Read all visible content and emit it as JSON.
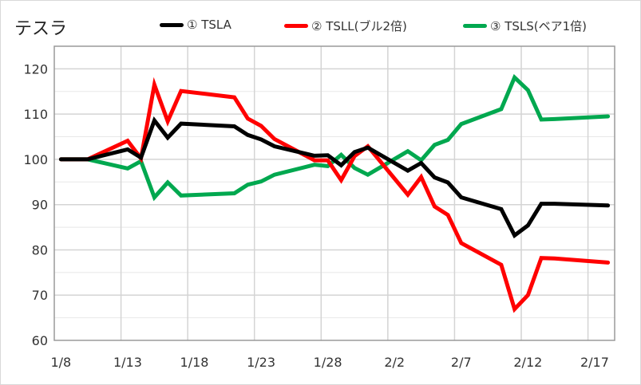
{
  "chart_data": {
    "type": "line",
    "title": "テスラ",
    "xlabel": "",
    "ylabel": "",
    "ylim": [
      60,
      125
    ],
    "y_ticks": [
      "60",
      "70",
      "80",
      "90",
      "100",
      "110",
      "120"
    ],
    "x_ticks": [
      "1/8",
      "1/13",
      "1/18",
      "1/23",
      "1/28",
      "2/2",
      "2/7",
      "2/12",
      "2/17"
    ],
    "grid": true,
    "legend_position": "top",
    "x": [
      "1/8",
      "1/10",
      "1/13",
      "1/14",
      "1/15",
      "1/16",
      "1/17",
      "1/21",
      "1/22",
      "1/23",
      "1/24",
      "1/27",
      "1/28",
      "1/29",
      "1/30",
      "1/31",
      "2/3",
      "2/4",
      "2/5",
      "2/6",
      "2/7",
      "2/10",
      "2/11",
      "2/12",
      "2/13",
      "2/14",
      "2/18"
    ],
    "series": [
      {
        "name": "① TSLA",
        "color": "#000000",
        "values": [
          100,
          100,
          102.2,
          100.4,
          108.6,
          104.8,
          107.9,
          107.3,
          105.4,
          104.4,
          102.9,
          100.8,
          100.9,
          98.7,
          101.6,
          102.6,
          97.5,
          99.2,
          96.0,
          94.9,
          91.6,
          89.0,
          83.2,
          85.4,
          90.2,
          90.2,
          89.8
        ]
      },
      {
        "name": "② TSLL(ブル2倍)",
        "color": "#ff0000",
        "values": [
          100,
          100,
          104.1,
          100.2,
          116.5,
          108.4,
          115.1,
          113.7,
          109.0,
          107.4,
          104.5,
          99.8,
          99.8,
          95.4,
          100.7,
          102.9,
          92.2,
          96.1,
          89.6,
          87.7,
          81.5,
          76.7,
          66.9,
          70.0,
          78.2,
          78.1,
          77.2
        ]
      },
      {
        "name": "③ TSLS(ベア1倍)",
        "color": "#00a84f",
        "values": [
          100,
          100,
          98.0,
          99.6,
          91.6,
          94.9,
          92.0,
          92.5,
          94.4,
          95.1,
          96.6,
          98.8,
          98.5,
          101.0,
          98.1,
          96.6,
          101.8,
          99.8,
          103.2,
          104.3,
          107.8,
          111.1,
          118.1,
          115.3,
          108.8,
          108.9,
          109.5
        ]
      }
    ]
  }
}
